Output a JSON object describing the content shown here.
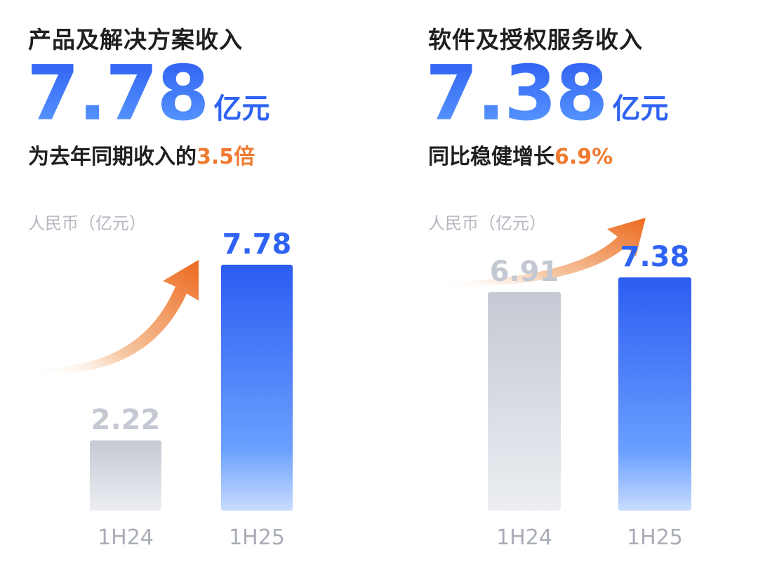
{
  "panels": [
    {
      "title": "产品及解决方案收入",
      "headline_value": "7.78",
      "headline_unit": "亿元",
      "sub_prefix": "为去年同期收入的",
      "sub_highlight": "3.5倍",
      "unit_label": "人民币（亿元）"
    },
    {
      "title": "软件及授权服务收入",
      "headline_value": "7.38",
      "headline_unit": "亿元",
      "sub_prefix": "同比稳健增长",
      "sub_highlight": "6.9%",
      "unit_label": "人民币（亿元）"
    }
  ],
  "colors": {
    "accent_blue": "#2f63f3",
    "accent_orange": "#ef7a30",
    "bar_gray": "#c9ccd6",
    "text_dark": "#1f1f1f"
  },
  "chart_data": [
    {
      "type": "bar",
      "title": "产品及解决方案收入",
      "ylabel": "人民币（亿元）",
      "categories": [
        "1H24",
        "1H25"
      ],
      "values": [
        2.22,
        7.78
      ],
      "labels": [
        "2.22",
        "7.78"
      ],
      "ylim": [
        0,
        9.5
      ],
      "grid": false
    },
    {
      "type": "bar",
      "title": "软件及授权服务收入",
      "ylabel": "人民币（亿元）",
      "categories": [
        "1H24",
        "1H25"
      ],
      "values": [
        6.91,
        7.38
      ],
      "labels": [
        "6.91",
        "7.38"
      ],
      "ylim": [
        0,
        9.5
      ],
      "grid": false
    }
  ]
}
